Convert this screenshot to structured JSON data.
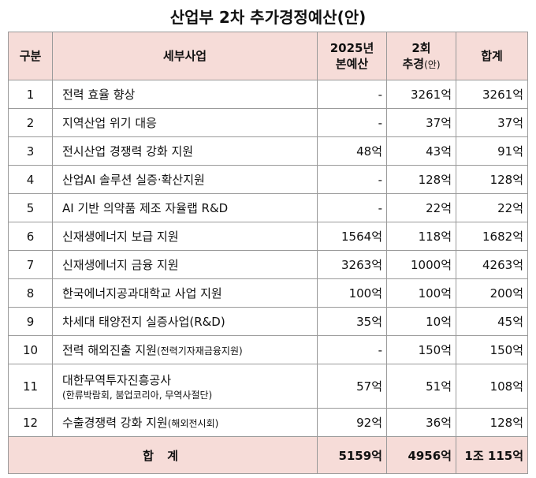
{
  "title": "산업부 2차 추가경정예산(안)",
  "header": {
    "col1": "구분",
    "col2": "세부사업",
    "col3_line1": "2025년",
    "col3_line2": "본예산",
    "col4_line1": "2회",
    "col4_line2": "추경",
    "col4_suffix": "(안)",
    "col5": "합계"
  },
  "rows": [
    {
      "no": "1",
      "name": "전력 효율 향상",
      "note": "",
      "base": "-",
      "supp": "3261억",
      "total": "3261억"
    },
    {
      "no": "2",
      "name": "지역산업 위기 대응",
      "note": "",
      "base": "-",
      "supp": "37억",
      "total": "37억"
    },
    {
      "no": "3",
      "name": "전시산업 경쟁력 강화 지원",
      "note": "",
      "base": "48억",
      "supp": "43억",
      "total": "91억"
    },
    {
      "no": "4",
      "name": "산업AI 솔루션 실증·확산지원",
      "note": "",
      "base": "-",
      "supp": "128억",
      "total": "128억"
    },
    {
      "no": "5",
      "name": "AI 기반 의약품 제조 자율랩 R&D",
      "note": "",
      "base": "-",
      "supp": "22억",
      "total": "22억"
    },
    {
      "no": "6",
      "name": "신재생에너지 보급 지원",
      "note": "",
      "base": "1564억",
      "supp": "118억",
      "total": "1682억"
    },
    {
      "no": "7",
      "name": "신재생에너지 금융 지원",
      "note": "",
      "base": "3263억",
      "supp": "1000억",
      "total": "4263억"
    },
    {
      "no": "8",
      "name": "한국에너지공과대학교 사업 지원",
      "note": "",
      "base": "100억",
      "supp": "100억",
      "total": "200억"
    },
    {
      "no": "9",
      "name": "차세대 태양전지 실증사업(R&D)",
      "note": "",
      "base": "35억",
      "supp": "10억",
      "total": "45억"
    },
    {
      "no": "10",
      "name": "전력 해외진출 지원",
      "note": "(전력기자재금융지원)",
      "base": "-",
      "supp": "150억",
      "total": "150억"
    },
    {
      "no": "11",
      "name": "대한무역투자진흥공사",
      "note": "(한류박람회, 붐업코리아, 무역사절단)",
      "base": "57억",
      "supp": "51억",
      "total": "108억"
    },
    {
      "no": "12",
      "name": "수출경쟁력 강화 지원",
      "note": "(해외전시회)",
      "base": "92억",
      "supp": "36억",
      "total": "128억"
    }
  ],
  "footer": {
    "label": "합 계",
    "base": "5159억",
    "supp": "4956억",
    "total": "1조 115억"
  },
  "colors": {
    "header_bg": "#f6dcd8",
    "border": "#9a9a9a"
  }
}
